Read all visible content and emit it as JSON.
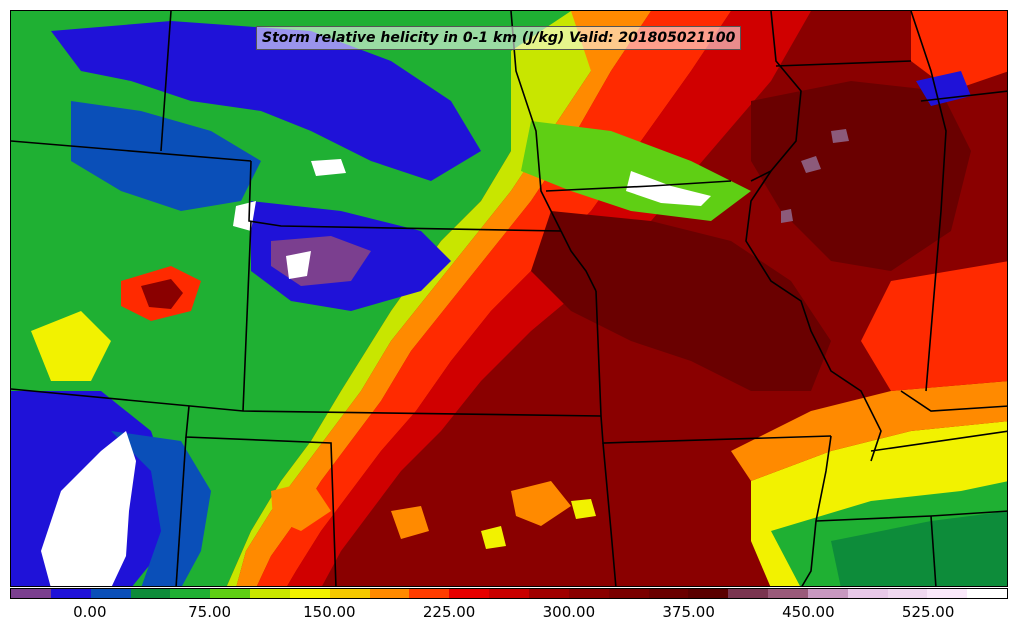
{
  "title": "Storm relative helicity in 0-1 km (J/kg) Valid: 201805021100",
  "colorbar": {
    "colors": [
      "#7b3f8f",
      "#1f12d8",
      "#0a4fb8",
      "#0d8c3a",
      "#1fb033",
      "#5fcf14",
      "#c8e600",
      "#f2f200",
      "#f5c800",
      "#ff8a00",
      "#ff3c00",
      "#e60000",
      "#c80000",
      "#a00000",
      "#8a0000",
      "#7a0000",
      "#6a0000",
      "#5a0000",
      "#7a3550",
      "#9a5a7a",
      "#c898c0",
      "#e8c8e8",
      "#f0d8f0",
      "#fae8fa",
      "#ffffff"
    ],
    "tick_labels": [
      "0.00",
      "75.00",
      "150.00",
      "225.00",
      "300.00",
      "375.00",
      "450.00",
      "525.00"
    ]
  },
  "palette": {
    "purple": "#7b3f8f",
    "blue": "#1f12d8",
    "navy": "#0a4fb8",
    "dkgreen": "#0d8c3a",
    "green": "#1fb033",
    "lime": "#5fcf14",
    "yellowgreen": "#c8e600",
    "yellow": "#f2f200",
    "orange": "#ff8a00",
    "red": "#ff2a00",
    "crimson": "#d00000",
    "darkred": "#8a0000",
    "maroon": "#6a0000",
    "mauve": "#8c5a7a",
    "white": "#ffffff"
  }
}
